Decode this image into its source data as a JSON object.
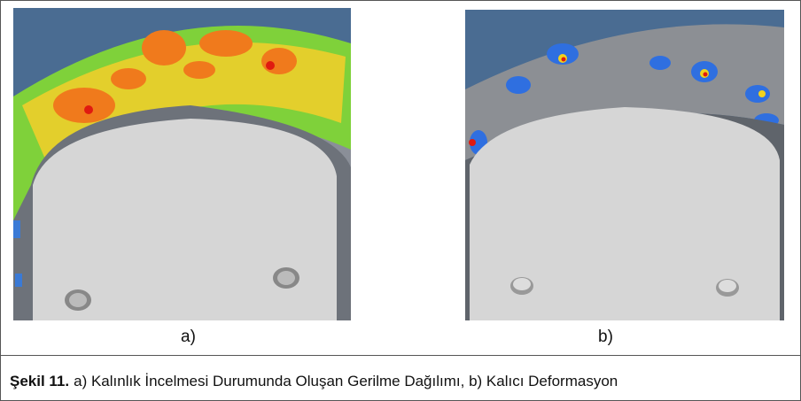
{
  "figure": {
    "panels": [
      {
        "label": "a)"
      },
      {
        "label": "b)"
      }
    ],
    "caption": {
      "number": "Şekil 11.",
      "text": "a) Kalınlık İncelmesi Durumunda Oluşan Gerilme Dağılımı, b) Kalıcı Deformasyon"
    }
  }
}
